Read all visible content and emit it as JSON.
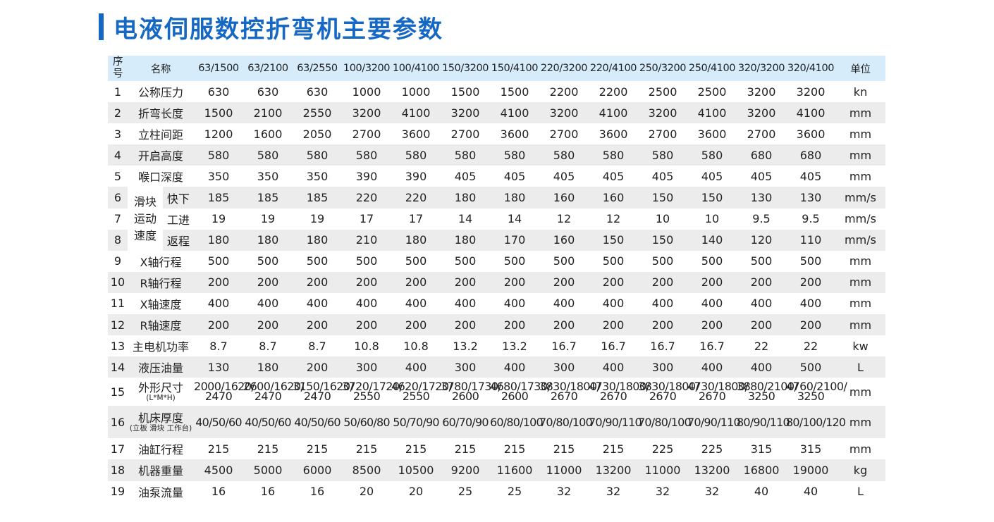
{
  "title": "电液伺服数控折弯机主要参数",
  "header": {
    "seq": [
      "序",
      "号"
    ],
    "name": "名称",
    "models": [
      "63/1500",
      "63/2100",
      "63/2550",
      "100/3200",
      "100/4100",
      "150/3200",
      "150/4100",
      "220/3200",
      "220/4100",
      "250/3200",
      "250/4100",
      "320/3200",
      "320/4100"
    ],
    "unit": "单位"
  },
  "slide_group_label": [
    "滑块",
    "运动",
    "速度"
  ],
  "rows": [
    {
      "seq": "1",
      "name": "公称压力",
      "values": [
        "630",
        "630",
        "630",
        "1000",
        "1000",
        "1500",
        "1500",
        "2200",
        "2200",
        "2500",
        "2500",
        "3200",
        "3200"
      ],
      "unit": "kn"
    },
    {
      "seq": "2",
      "name": "折弯长度",
      "values": [
        "1500",
        "2100",
        "2550",
        "3200",
        "4100",
        "3200",
        "4100",
        "3200",
        "4100",
        "3200",
        "4100",
        "3200",
        "4100"
      ],
      "unit": "mm"
    },
    {
      "seq": "3",
      "name": "立柱间距",
      "values": [
        "1200",
        "1600",
        "2050",
        "2700",
        "3600",
        "2700",
        "3600",
        "2700",
        "3600",
        "2700",
        "3600",
        "2700",
        "3600"
      ],
      "unit": "mm"
    },
    {
      "seq": "4",
      "name": "开启高度",
      "values": [
        "580",
        "580",
        "580",
        "580",
        "580",
        "580",
        "580",
        "580",
        "580",
        "580",
        "580",
        "680",
        "680"
      ],
      "unit": "mm"
    },
    {
      "seq": "5",
      "name": "喉口深度",
      "values": [
        "350",
        "350",
        "350",
        "390",
        "390",
        "405",
        "405",
        "405",
        "405",
        "405",
        "405",
        "405",
        "405"
      ],
      "unit": "mm"
    },
    {
      "seq": "6",
      "name": "快下",
      "values": [
        "185",
        "185",
        "185",
        "220",
        "220",
        "180",
        "180",
        "160",
        "160",
        "150",
        "150",
        "130",
        "130"
      ],
      "unit": "mm/s"
    },
    {
      "seq": "7",
      "name": "工进",
      "values": [
        "19",
        "19",
        "19",
        "17",
        "17",
        "14",
        "14",
        "12",
        "12",
        "10",
        "10",
        "9.5",
        "9.5"
      ],
      "unit": "mm/s"
    },
    {
      "seq": "8",
      "name": "返程",
      "values": [
        "180",
        "180",
        "180",
        "210",
        "180",
        "180",
        "170",
        "160",
        "150",
        "150",
        "140",
        "120",
        "110"
      ],
      "unit": "mm/s"
    },
    {
      "seq": "9",
      "name": "X轴行程",
      "values": [
        "500",
        "500",
        "500",
        "500",
        "500",
        "500",
        "500",
        "500",
        "500",
        "500",
        "500",
        "500",
        "500"
      ],
      "unit": "mm"
    },
    {
      "seq": "10",
      "name": "R轴行程",
      "values": [
        "200",
        "200",
        "200",
        "200",
        "200",
        "200",
        "200",
        "200",
        "200",
        "200",
        "200",
        "200",
        "200"
      ],
      "unit": "mm"
    },
    {
      "seq": "11",
      "name": "X轴速度",
      "values": [
        "400",
        "400",
        "400",
        "400",
        "400",
        "400",
        "400",
        "400",
        "400",
        "400",
        "400",
        "400",
        "400"
      ],
      "unit": "mm"
    },
    {
      "seq": "12",
      "name": "R轴速度",
      "values": [
        "200",
        "200",
        "200",
        "200",
        "200",
        "200",
        "200",
        "200",
        "200",
        "200",
        "200",
        "200",
        "200"
      ],
      "unit": "mm"
    },
    {
      "seq": "13",
      "name": "主电机功率",
      "values": [
        "8.7",
        "8.7",
        "8.7",
        "10.8",
        "10.8",
        "13.2",
        "13.2",
        "16.7",
        "16.7",
        "16.7",
        "16.7",
        "22",
        "22"
      ],
      "unit": "kw"
    },
    {
      "seq": "14",
      "name": "液压油量",
      "values": [
        "130",
        "180",
        "200",
        "300",
        "400",
        "300",
        "400",
        "300",
        "400",
        "300",
        "400",
        "400",
        "500"
      ],
      "unit": "L"
    },
    {
      "seq": "15",
      "name": "外形尺寸",
      "note": "(L*M*H)",
      "values": [
        [
          "2000/1620/",
          "2470"
        ],
        [
          "2600/1620/",
          "2470"
        ],
        [
          "3150/1620/",
          "2470"
        ],
        [
          "3720/1720/",
          "2550"
        ],
        [
          "4620/1720/",
          "2550"
        ],
        [
          "3780/1730/",
          "2600"
        ],
        [
          "4680/1730/",
          "2600"
        ],
        [
          "3830/1800/",
          "2670"
        ],
        [
          "4730/1800/",
          "2670"
        ],
        [
          "3830/1800/",
          "2670"
        ],
        [
          "4730/1800/",
          "2670"
        ],
        [
          "3880/2100/",
          "3250"
        ],
        [
          "4760/2100/",
          "3250"
        ]
      ],
      "unit": "mm"
    },
    {
      "seq": "16",
      "name": "机床厚度",
      "note": "(立板 滑块 工作台)",
      "values": [
        "40/50/60",
        "40/50/60",
        "40/50/60",
        "50/60/80",
        "50/70/90",
        "60/70/90",
        "60/80/100",
        "70/80/100",
        "70/90/110",
        "70/80/100",
        "70/90/110",
        "80/90/110",
        "80/100/120"
      ],
      "unit": "mm"
    },
    {
      "seq": "17",
      "name": "油缸行程",
      "values": [
        "215",
        "215",
        "215",
        "215",
        "215",
        "215",
        "215",
        "215",
        "215",
        "225",
        "225",
        "315",
        "315"
      ],
      "unit": "mm"
    },
    {
      "seq": "18",
      "name": "机器重量",
      "values": [
        "4500",
        "5000",
        "6000",
        "8500",
        "10500",
        "9200",
        "11600",
        "11000",
        "13200",
        "11000",
        "13200",
        "16800",
        "19000"
      ],
      "unit": "kg"
    },
    {
      "seq": "19",
      "name": "油泵流量",
      "values": [
        "16",
        "16",
        "16",
        "20",
        "20",
        "25",
        "25",
        "32",
        "32",
        "32",
        "32",
        "40",
        "40"
      ],
      "unit": "L"
    }
  ],
  "colors": {
    "accent": "#1468c4",
    "header_bg": "#d6ecfb",
    "stripe_bg": "#ececed"
  }
}
